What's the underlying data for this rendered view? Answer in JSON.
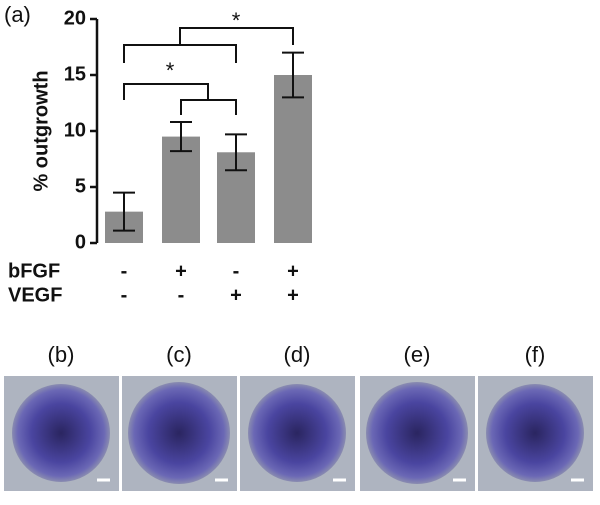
{
  "chart_data": {
    "type": "bar",
    "panel_label": "(a)",
    "y_label": "% outgrowth",
    "categories": [
      null,
      null,
      null,
      null
    ],
    "values": [
      2.8,
      9.5,
      8.1,
      15.0
    ],
    "errors": [
      1.7,
      1.3,
      1.6,
      2.0
    ],
    "color": "#8c8c8c",
    "ylim": [
      0,
      20
    ],
    "yticks": [
      0,
      5,
      10,
      15,
      20
    ],
    "conditions": [
      {
        "label": "bFGF",
        "signs": [
          "-",
          "+",
          "-",
          "+"
        ]
      },
      {
        "label": "VEGF",
        "signs": [
          "-",
          "-",
          "+",
          "+"
        ]
      }
    ],
    "annotations": [
      "*",
      "*"
    ]
  },
  "images": [
    {
      "label": "(b)"
    },
    {
      "label": "(c)"
    },
    {
      "label": "(d)"
    },
    {
      "label": "(e)"
    },
    {
      "label": "(f)"
    }
  ]
}
